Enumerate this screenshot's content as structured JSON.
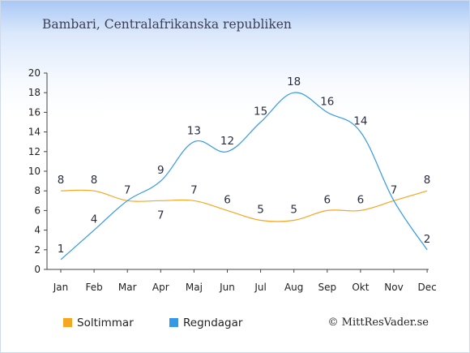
{
  "chart_data": {
    "type": "line",
    "title": "Bambari, Centralafrikanska republiken",
    "categories": [
      "Jan",
      "Feb",
      "Mar",
      "Apr",
      "Maj",
      "Jun",
      "Jul",
      "Aug",
      "Sep",
      "Okt",
      "Nov",
      "Dec"
    ],
    "ylim": [
      0,
      20
    ],
    "yticks": [
      0,
      2,
      4,
      6,
      8,
      10,
      12,
      14,
      16,
      18,
      20
    ],
    "grid": false,
    "legend_position": "bottom-left",
    "series": [
      {
        "name": "Soltimmar",
        "color": "#f5a623",
        "values": [
          8,
          8,
          7,
          7,
          7,
          6,
          5,
          5,
          6,
          6,
          7,
          8
        ]
      },
      {
        "name": "Regndagar",
        "color": "#3399e6",
        "values": [
          1,
          4,
          7,
          9,
          13,
          12,
          15,
          18,
          16,
          14,
          7,
          2
        ]
      }
    ]
  },
  "credit": "© MittResVader.se"
}
